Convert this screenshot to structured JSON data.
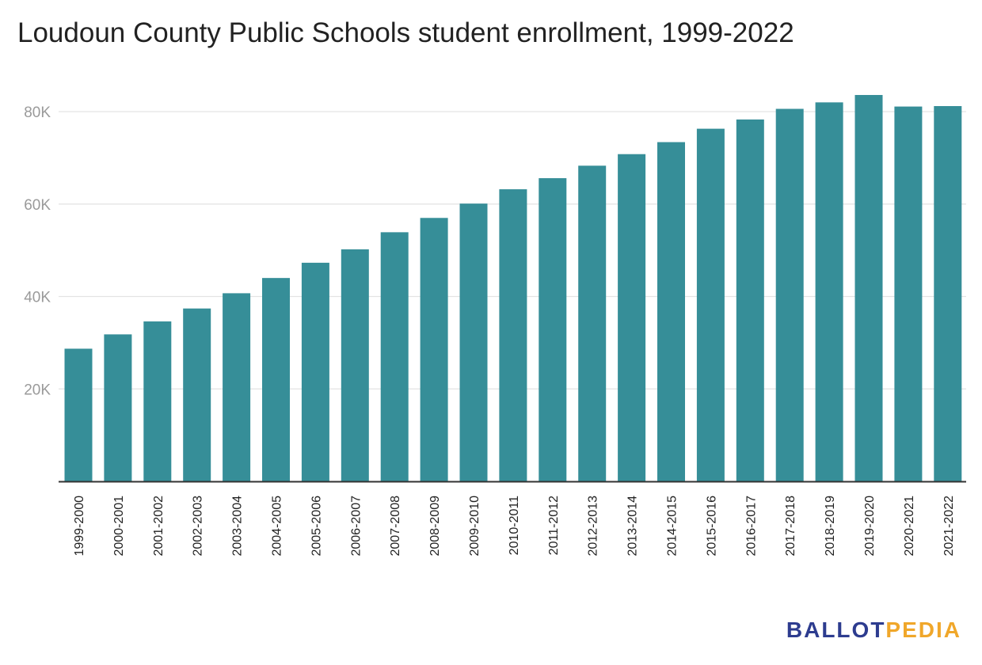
{
  "chart_data": {
    "type": "bar",
    "title": "Loudoun County Public Schools student enrollment, 1999-2022",
    "xlabel": "",
    "ylabel": "",
    "ylim": [
      0,
      90000
    ],
    "yticks": [
      20000,
      40000,
      60000,
      80000
    ],
    "ytick_labels": [
      "20K",
      "40K",
      "60K",
      "80K"
    ],
    "grid": true,
    "bar_color": "#368e98",
    "categories": [
      "1999-2000",
      "2000-2001",
      "2001-2002",
      "2002-2003",
      "2003-2004",
      "2004-2005",
      "2005-2006",
      "2006-2007",
      "2007-2008",
      "2008-2009",
      "2009-2010",
      "2010-2011",
      "2011-2012",
      "2012-2013",
      "2013-2014",
      "2014-2015",
      "2015-2016",
      "2016-2017",
      "2017-2018",
      "2018-2019",
      "2019-2020",
      "2020-2021",
      "2021-2022"
    ],
    "values": [
      28700,
      31800,
      34600,
      37400,
      40700,
      44000,
      47300,
      50200,
      53900,
      57000,
      60100,
      63200,
      65600,
      68300,
      70800,
      73400,
      76300,
      78300,
      80600,
      82000,
      83600,
      81100,
      81200
    ]
  },
  "logo": {
    "part1": "BALLOT",
    "part2": "PEDIA",
    "color1": "#2d3c8f",
    "color2": "#f0a72a"
  }
}
